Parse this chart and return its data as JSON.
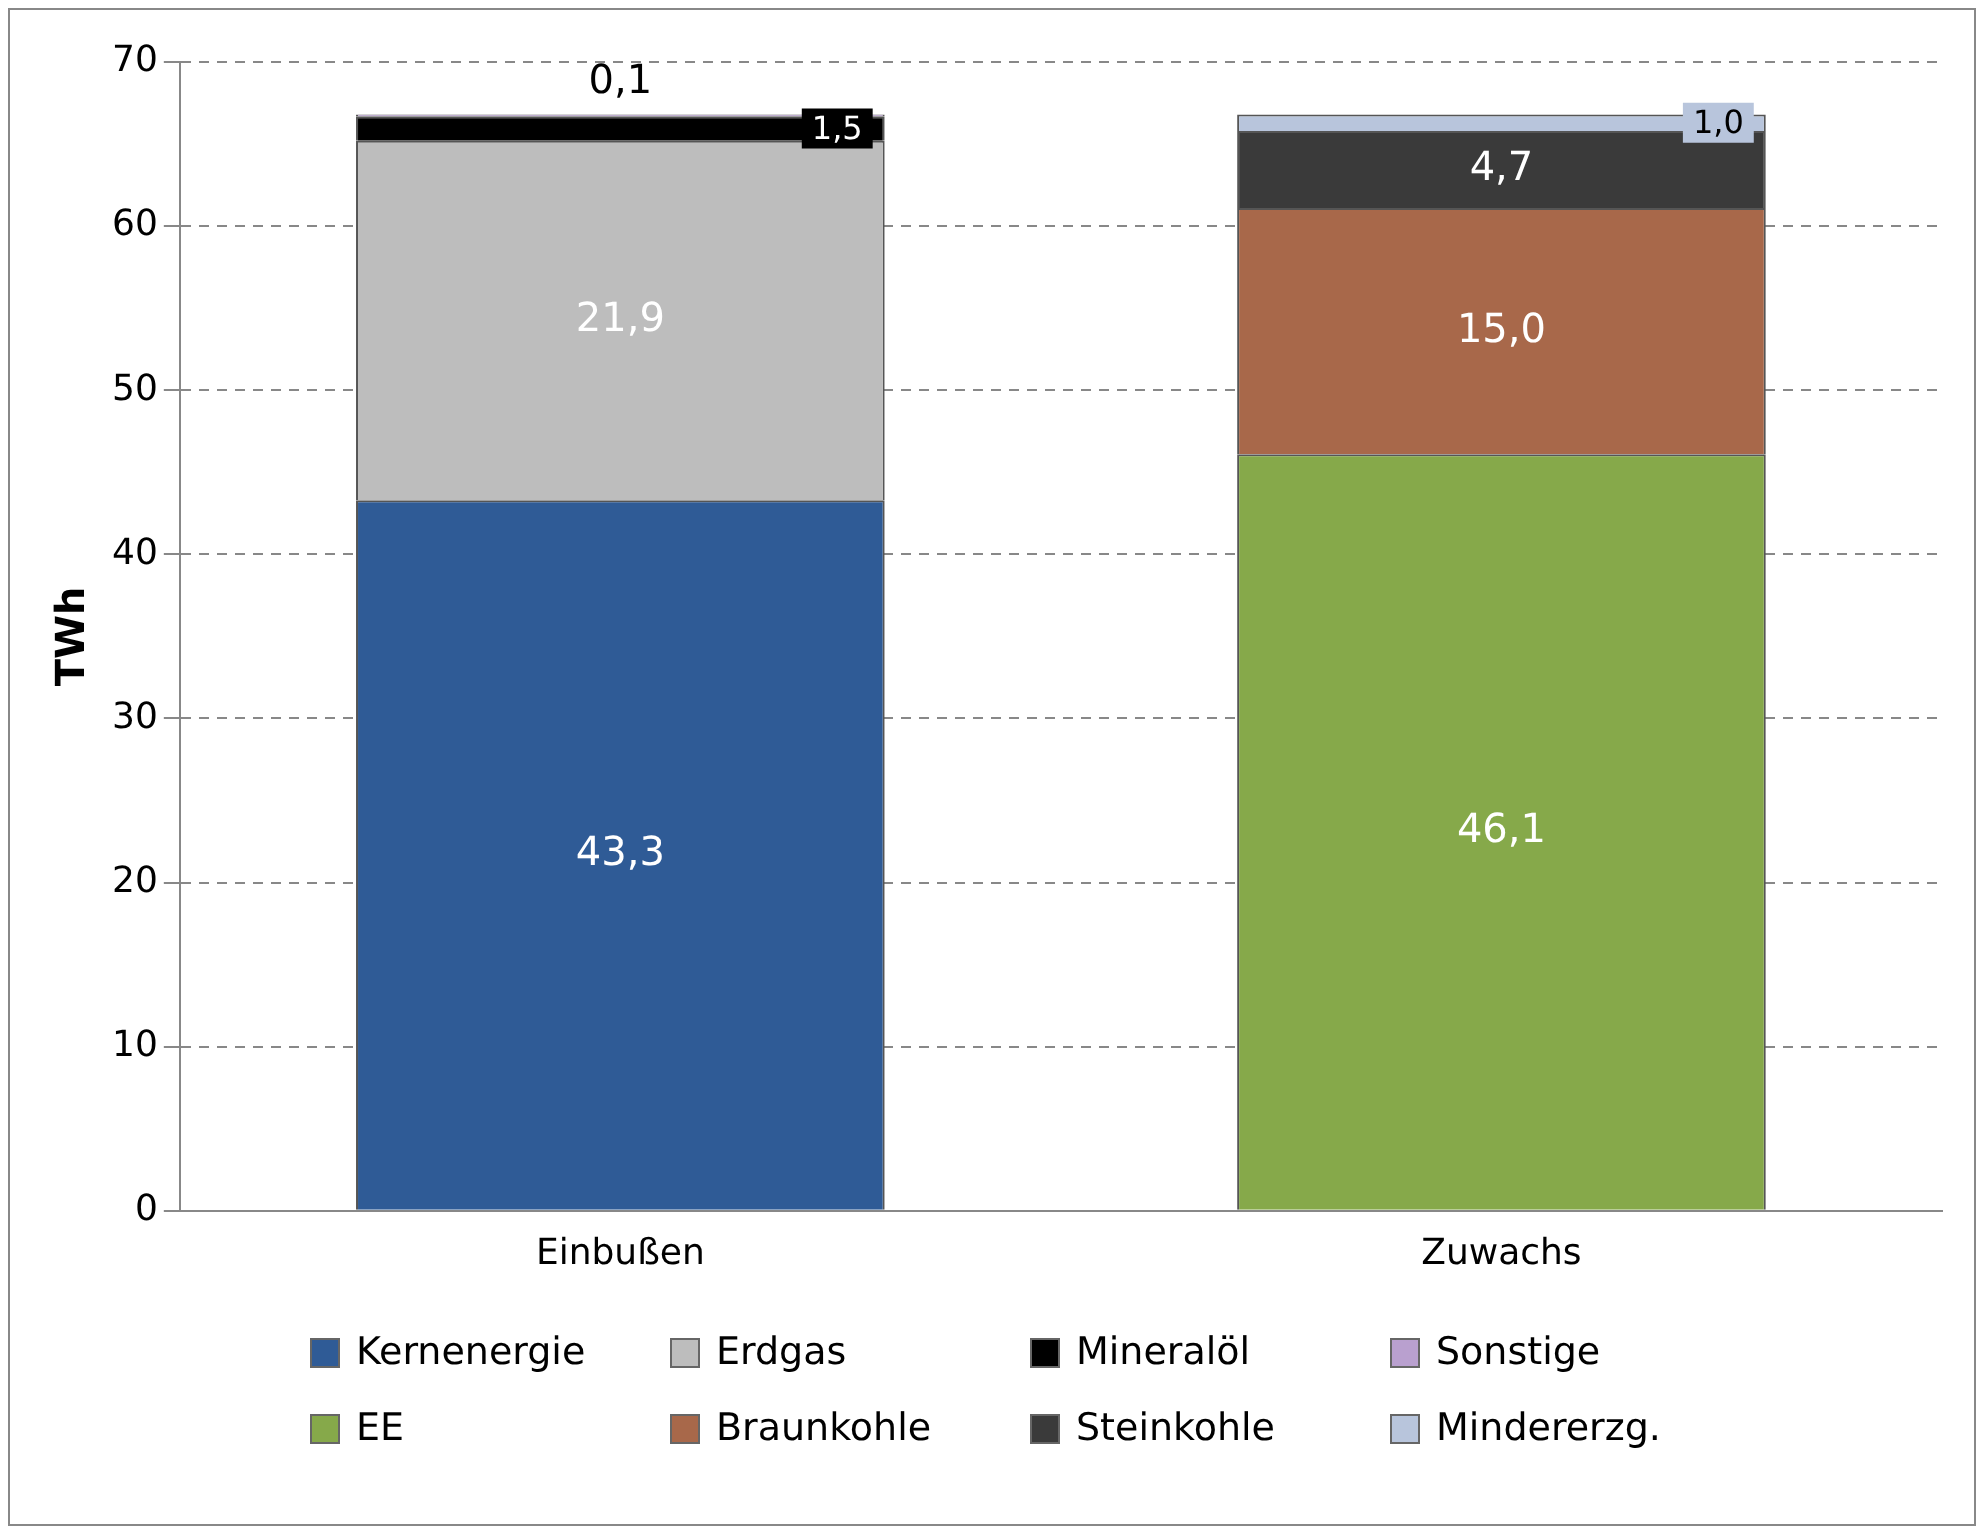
{
  "chart_data": {
    "type": "bar",
    "stacked": true,
    "ylabel": "TWh",
    "categories": [
      "Einbußen",
      "Zuwachs"
    ],
    "ylim": [
      0,
      70
    ],
    "yticks": [
      0,
      10,
      20,
      30,
      40,
      50,
      60,
      70
    ],
    "grid": "y",
    "legend": "bottom",
    "series": [
      {
        "name": "Kernenergie",
        "color": "#2f5b96",
        "values": [
          43.3,
          null
        ],
        "value_labels": [
          "43,3",
          null
        ]
      },
      {
        "name": "Erdgas",
        "color": "#bdbdbd",
        "values": [
          21.9,
          null
        ],
        "value_labels": [
          "21,9",
          null
        ]
      },
      {
        "name": "Mineralöl",
        "color": "#000000",
        "values": [
          1.5,
          null
        ],
        "value_labels": [
          "1,5",
          null
        ]
      },
      {
        "name": "Sonstige",
        "color": "#b9a0cf",
        "values": [
          0.1,
          null
        ],
        "value_labels": [
          "0,1",
          null
        ]
      },
      {
        "name": "EE",
        "color": "#86a94a",
        "values": [
          null,
          46.1
        ],
        "value_labels": [
          null,
          "46,1"
        ]
      },
      {
        "name": "Braunkohle",
        "color": "#a8684a",
        "values": [
          null,
          15.0
        ],
        "value_labels": [
          null,
          "15,0"
        ]
      },
      {
        "name": "Steinkohle",
        "color": "#3a3a3a",
        "values": [
          null,
          4.7
        ],
        "value_labels": [
          null,
          "4,7"
        ]
      },
      {
        "name": "Mindererzg.",
        "color": "#b8c5dc",
        "values": [
          null,
          1.0
        ],
        "value_labels": [
          null,
          "1,0"
        ]
      }
    ]
  }
}
